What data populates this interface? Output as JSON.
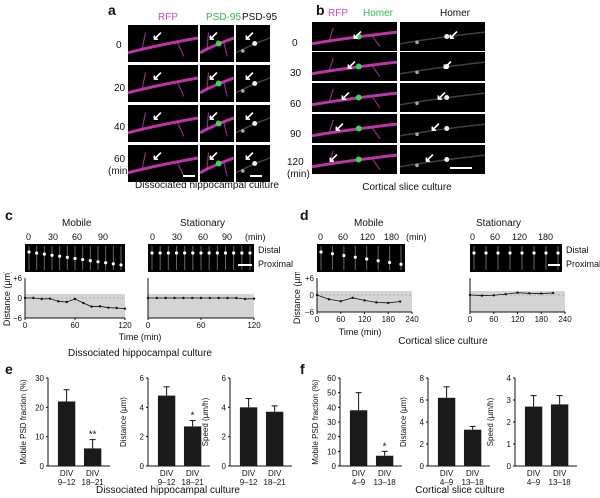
{
  "panel_labels": {
    "a": "a",
    "b": "b",
    "c": "c",
    "d": "d",
    "e": "e",
    "f": "f"
  },
  "panel_a": {
    "headers": [
      "RFP",
      "PSD-95",
      "PSD-95"
    ],
    "header_colors": [
      "#e040c8",
      "#2ebd4a",
      "#111111"
    ],
    "times": [
      "0",
      "20",
      "40",
      "60"
    ],
    "unit": "(min)",
    "caption": "Dissociated hippocampal culture"
  },
  "panel_b": {
    "headers": [
      "RFP",
      "Homer",
      "Homer"
    ],
    "header_colors": [
      "#e040c8",
      "#2ebd4a",
      "#111111"
    ],
    "times": [
      "0",
      "30",
      "60",
      "90",
      "120"
    ],
    "unit": "(min)",
    "caption": "Cortical slice culture"
  },
  "panel_c": {
    "mobile_title": "Mobile",
    "stationary_title": "Stationary",
    "ticks_top": [
      "0",
      "30",
      "60",
      "90"
    ],
    "ticks_top_stat": [
      "0",
      "30",
      "60",
      "90",
      "(min)"
    ],
    "distal": "Distal",
    "proximal": "Proximal",
    "ylabel": "Distance (µm)",
    "yticks": [
      "+6",
      "0",
      "−6"
    ],
    "xlabel": "Time (min)",
    "xticks": [
      "0",
      "60",
      "120"
    ],
    "xticks_stat": [
      "0",
      "60",
      "120"
    ],
    "caption": "Dissociated hippocampal culture"
  },
  "panel_d": {
    "mobile_title": "Mobile",
    "stationary_title": "Stationary",
    "ticks_top": [
      "0",
      "60",
      "120",
      "180",
      "(min)"
    ],
    "ticks_top_stat": [
      "0",
      "60",
      "120",
      "180"
    ],
    "distal": "Distal",
    "proximal": "Proximal",
    "ylabel": "Distance (µm)",
    "yticks": [
      "+6",
      "0",
      "−6"
    ],
    "xlabel": "Time (min)",
    "xticks": [
      "0",
      "60",
      "120",
      "180",
      "240"
    ],
    "caption": "Cortical slice culture"
  },
  "chart_data": [
    {
      "type": "line",
      "panel": "c-mobile",
      "x": [
        0,
        10,
        20,
        30,
        40,
        50,
        60,
        70,
        80,
        90,
        100,
        110,
        120
      ],
      "values": [
        0,
        0,
        -0.3,
        -0.2,
        -1.0,
        -1.2,
        -0.3,
        -1.5,
        -2.6,
        -2.5,
        -2.9,
        -3.0,
        -3.2
      ],
      "ylim": [
        -6,
        6
      ],
      "xlim": [
        0,
        120
      ]
    },
    {
      "type": "line",
      "panel": "c-stationary",
      "x": [
        0,
        10,
        20,
        30,
        40,
        50,
        60,
        70,
        80,
        90,
        100,
        110,
        120
      ],
      "values": [
        0,
        0,
        0,
        0,
        0,
        0,
        0,
        0,
        0,
        0,
        0,
        -0.3,
        -0.2
      ],
      "ylim": [
        -6,
        6
      ],
      "xlim": [
        0,
        120
      ]
    },
    {
      "type": "line",
      "panel": "d-mobile",
      "x": [
        0,
        30,
        60,
        90,
        120,
        150,
        180,
        210
      ],
      "values": [
        0,
        -1.5,
        -2.2,
        -1.0,
        -1.9,
        -2.6,
        -2.8,
        -2.3
      ],
      "ylim": [
        -6,
        6
      ],
      "xlim": [
        0,
        240
      ]
    },
    {
      "type": "line",
      "panel": "d-stationary",
      "x": [
        0,
        30,
        60,
        90,
        120,
        150,
        180,
        210
      ],
      "values": [
        0,
        -0.2,
        -0.1,
        0.3,
        0.8,
        0.6,
        0.5,
        0.7
      ],
      "ylim": [
        -6,
        6
      ],
      "xlim": [
        0,
        240
      ]
    },
    {
      "type": "bar",
      "panel": "e-1",
      "categories": [
        [
          "DIV",
          "9–12"
        ],
        [
          "DIV",
          "18–21"
        ]
      ],
      "values": [
        22,
        6
      ],
      "errors": [
        4,
        3
      ],
      "ylabel": "Mobile PSD fraction (%)",
      "yticks": [
        0,
        10,
        20,
        30
      ],
      "ylim": [
        0,
        30
      ],
      "annotations": [
        "",
        "**"
      ]
    },
    {
      "type": "bar",
      "panel": "e-2",
      "categories": [
        [
          "DIV",
          "9–12"
        ],
        [
          "DIV",
          "18–21"
        ]
      ],
      "values": [
        4.8,
        2.7
      ],
      "errors": [
        0.6,
        0.4
      ],
      "ylabel": "Distance (µm)",
      "yticks": [
        0,
        2,
        4,
        6
      ],
      "ylim": [
        0,
        6
      ],
      "annotations": [
        "",
        "*"
      ]
    },
    {
      "type": "bar",
      "panel": "e-3",
      "categories": [
        [
          "DIV",
          "9–12"
        ],
        [
          "DIV",
          "18–21"
        ]
      ],
      "values": [
        4.0,
        3.7
      ],
      "errors": [
        0.6,
        0.4
      ],
      "ylabel": "Speed (µm/h)",
      "yticks": [
        0,
        2,
        4,
        6
      ],
      "ylim": [
        0,
        6
      ],
      "annotations": [
        "",
        ""
      ]
    },
    {
      "type": "bar",
      "panel": "f-1",
      "categories": [
        [
          "DIV",
          "4–9"
        ],
        [
          "DIV",
          "13–18"
        ]
      ],
      "values": [
        38,
        7
      ],
      "errors": [
        12,
        3
      ],
      "ylabel": "Mobile PSD fraction (%)",
      "yticks": [
        0,
        10,
        20,
        30,
        40,
        50,
        60
      ],
      "ylim": [
        0,
        60
      ],
      "annotations": [
        "",
        "*"
      ]
    },
    {
      "type": "bar",
      "panel": "f-2",
      "categories": [
        [
          "DIV",
          "4–9"
        ],
        [
          "DIV",
          "13–18"
        ]
      ],
      "values": [
        6.2,
        3.3
      ],
      "errors": [
        1.0,
        0.3
      ],
      "ylabel": "Distance (µm)",
      "yticks": [
        0,
        2,
        4,
        6,
        8
      ],
      "ylim": [
        0,
        8
      ],
      "annotations": [
        "",
        ""
      ]
    },
    {
      "type": "bar",
      "panel": "f-3",
      "categories": [
        [
          "DIV",
          "4–9"
        ],
        [
          "DIV",
          "13–18"
        ]
      ],
      "values": [
        2.7,
        2.8
      ],
      "errors": [
        0.5,
        0.4
      ],
      "ylabel": "Speed (µm/h)",
      "yticks": [
        0,
        1,
        2,
        3,
        4
      ],
      "ylim": [
        0,
        4
      ],
      "annotations": [
        "",
        ""
      ]
    }
  ],
  "panel_e_caption": "Dissociated hippocampal culture",
  "panel_f_caption": "Cortical slice culture"
}
